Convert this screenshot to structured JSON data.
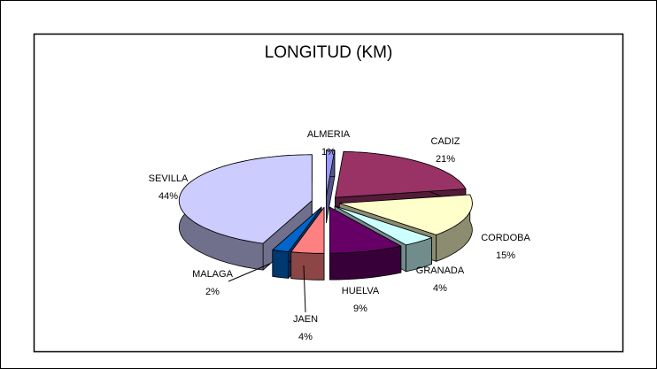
{
  "chart_data": {
    "type": "pie3d",
    "title": "LONGITUD (KM)",
    "categories": [
      "ALMERIA",
      "CADIZ",
      "CORDOBA",
      "GRANADA",
      "HUELVA",
      "JAEN",
      "MALAGA",
      "SEVILLA"
    ],
    "values": [
      1,
      21,
      15,
      4,
      9,
      4,
      2,
      44
    ],
    "value_labels": [
      "1%",
      "21%",
      "15%",
      "4%",
      "9%",
      "4%",
      "2%",
      "44%"
    ],
    "colors": [
      "#9999ff",
      "#993366",
      "#ffffcc",
      "#ccffff",
      "#660066",
      "#ff8080",
      "#0066cc",
      "#ccccff"
    ]
  }
}
